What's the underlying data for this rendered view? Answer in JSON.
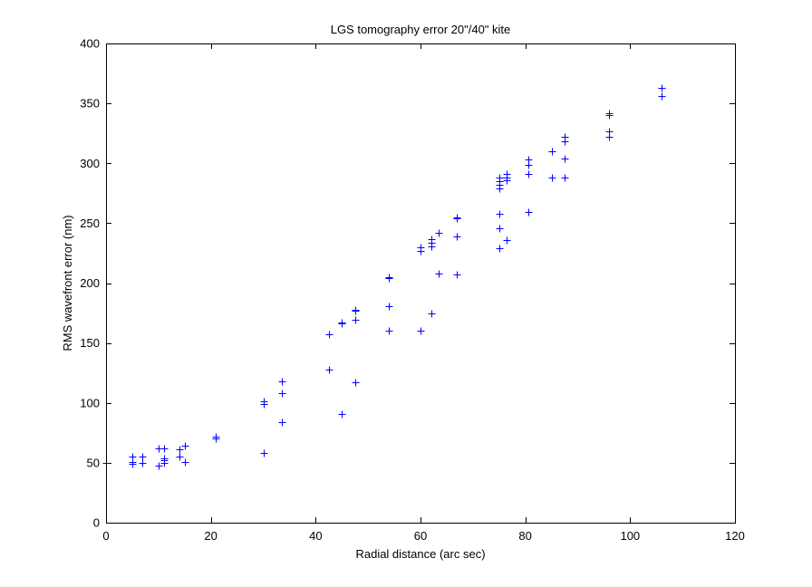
{
  "chart_data": {
    "type": "scatter",
    "title": "LGS tomography error 20\"/40\" kite",
    "xlabel": "Radial distance (arc sec)",
    "ylabel": "RMS wavefront error (nm)",
    "xlim": [
      0,
      120
    ],
    "ylim": [
      0,
      400
    ],
    "xticks": [
      0,
      20,
      40,
      60,
      80,
      100,
      120
    ],
    "yticks": [
      0,
      50,
      100,
      150,
      200,
      250,
      300,
      350,
      400
    ],
    "grid": false,
    "marker": "+",
    "marker_color": "#0000ff",
    "points": [
      [
        0,
        50
      ],
      [
        5,
        49
      ],
      [
        5,
        51
      ],
      [
        5,
        55
      ],
      [
        7,
        50
      ],
      [
        7,
        55
      ],
      [
        10,
        48
      ],
      [
        10,
        62
      ],
      [
        11,
        50
      ],
      [
        11,
        52
      ],
      [
        11,
        54
      ],
      [
        11,
        62
      ],
      [
        14,
        55
      ],
      [
        14,
        61
      ],
      [
        15,
        51
      ],
      [
        15,
        64
      ],
      [
        21,
        70
      ],
      [
        21,
        72
      ],
      [
        30,
        58
      ],
      [
        30,
        99
      ],
      [
        30,
        101
      ],
      [
        33.5,
        84
      ],
      [
        33.5,
        108
      ],
      [
        33.5,
        118
      ],
      [
        42.5,
        128
      ],
      [
        42.5,
        157
      ],
      [
        45,
        91
      ],
      [
        45,
        166
      ],
      [
        45,
        167
      ],
      [
        47.5,
        117
      ],
      [
        47.5,
        169
      ],
      [
        47.5,
        177
      ],
      [
        47.5,
        178
      ],
      [
        54,
        160
      ],
      [
        54,
        181
      ],
      [
        54,
        204
      ],
      [
        54,
        205
      ],
      [
        60,
        160
      ],
      [
        60,
        227
      ],
      [
        60,
        230
      ],
      [
        62,
        175
      ],
      [
        62,
        231
      ],
      [
        62,
        234
      ],
      [
        62,
        237
      ],
      [
        63.5,
        208
      ],
      [
        63.5,
        242
      ],
      [
        67,
        207
      ],
      [
        67,
        239
      ],
      [
        67,
        254
      ],
      [
        67,
        255
      ],
      [
        75,
        229
      ],
      [
        75,
        246
      ],
      [
        75,
        258
      ],
      [
        75,
        279
      ],
      [
        75,
        282
      ],
      [
        75,
        285
      ],
      [
        75,
        288
      ],
      [
        76.5,
        236
      ],
      [
        76.5,
        286
      ],
      [
        76.5,
        288
      ],
      [
        76.5,
        291
      ],
      [
        80.5,
        259
      ],
      [
        80.5,
        291
      ],
      [
        80.5,
        299
      ],
      [
        80.5,
        303
      ],
      [
        85,
        288
      ],
      [
        85,
        310
      ],
      [
        87.5,
        288
      ],
      [
        87.5,
        304
      ],
      [
        87.5,
        318
      ],
      [
        87.5,
        322
      ],
      [
        96,
        322
      ],
      [
        96,
        327
      ],
      [
        96,
        340
      ],
      [
        96,
        342
      ],
      [
        106,
        356
      ],
      [
        106,
        363
      ]
    ]
  }
}
